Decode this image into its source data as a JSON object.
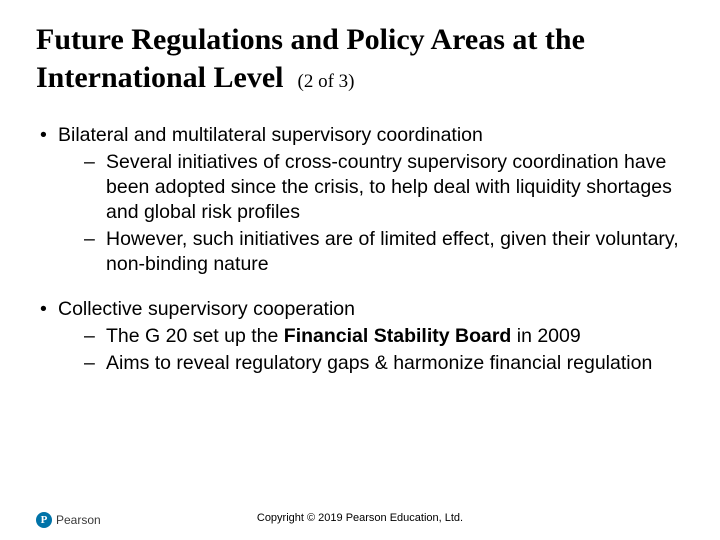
{
  "title": {
    "main": "Future Regulations and Policy Areas at the International Level",
    "part": "(2 of 3)",
    "fontsize_main": 30,
    "fontsize_part": 19,
    "font_family": "Times New Roman",
    "color": "#000000"
  },
  "body": {
    "fontsize": 19.5,
    "font_family": "Arial",
    "color": "#000000",
    "bullets": [
      {
        "text": "Bilateral and multilateral supervisory coordination",
        "children": [
          {
            "text": "Several initiatives of cross-country supervisory coordination have been adopted since the crisis, to help deal with liquidity shortages and global risk profiles"
          },
          {
            "text": "However, such initiatives are of limited effect, given their voluntary, non-binding nature"
          }
        ]
      },
      {
        "text": "Collective supervisory cooperation",
        "children": [
          {
            "text_pre": "The G 20 set up the ",
            "bold": "Financial Stability Board",
            "text_post": " in 2009"
          },
          {
            "text": "Aims to reveal regulatory gaps & harmonize financial regulation"
          }
        ]
      }
    ]
  },
  "footer": {
    "logo_letter": "P",
    "logo_brand": "Pearson",
    "logo_circle_color": "#0073a8",
    "copyright": "Copyright © 2019 Pearson Education, Ltd.",
    "copyright_fontsize": 11
  },
  "background_color": "#ffffff"
}
